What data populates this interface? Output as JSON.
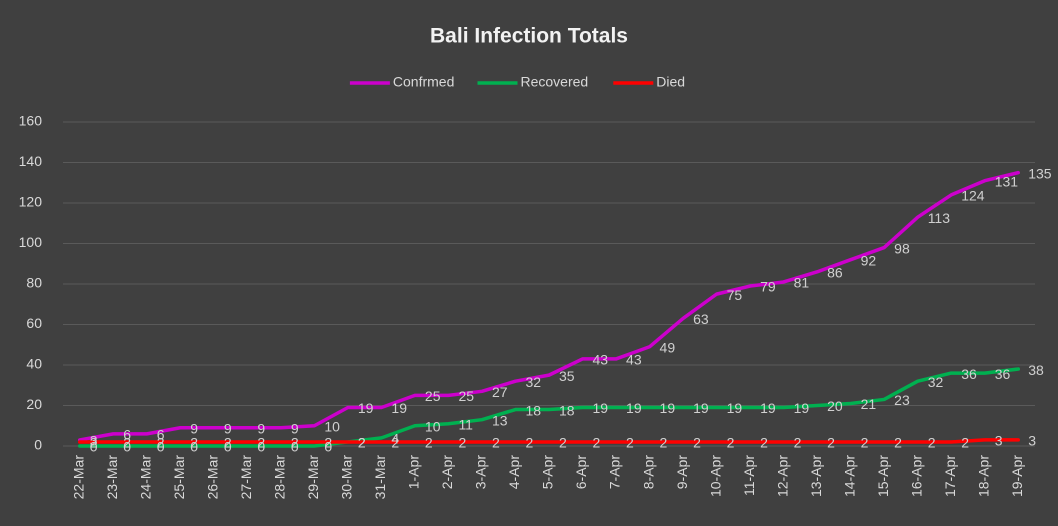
{
  "chart_data": {
    "type": "line",
    "title": "Bali Infection Totals",
    "categories": [
      "22-Mar",
      "23-Mar",
      "24-Mar",
      "25-Mar",
      "26-Mar",
      "27-Mar",
      "28-Mar",
      "29-Mar",
      "30-Mar",
      "31-Mar",
      "1-Apr",
      "2-Apr",
      "3-Apr",
      "4-Apr",
      "5-Apr",
      "6-Apr",
      "7-Apr",
      "8-Apr",
      "9-Apr",
      "10-Apr",
      "11-Apr",
      "12-Apr",
      "13-Apr",
      "14-Apr",
      "15-Apr",
      "16-Apr",
      "17-Apr",
      "18-Apr",
      "19-Apr"
    ],
    "series": [
      {
        "name": "Confrmed",
        "color": "#cc00cc",
        "values": [
          3,
          6,
          6,
          9,
          9,
          9,
          9,
          10,
          19,
          19,
          25,
          25,
          27,
          32,
          35,
          43,
          43,
          49,
          63,
          75,
          79,
          81,
          86,
          92,
          98,
          113,
          124,
          131,
          135
        ]
      },
      {
        "name": "Recovered",
        "color": "#00b050",
        "values": [
          0,
          0,
          0,
          0,
          0,
          0,
          0,
          0,
          2,
          4,
          10,
          11,
          13,
          18,
          18,
          19,
          19,
          19,
          19,
          19,
          19,
          19,
          20,
          21,
          23,
          32,
          36,
          36,
          38
        ]
      },
      {
        "name": "Died",
        "color": "#ff0000",
        "values": [
          2,
          2,
          2,
          2,
          2,
          2,
          2,
          2,
          2,
          2,
          2,
          2,
          2,
          2,
          2,
          2,
          2,
          2,
          2,
          2,
          2,
          2,
          2,
          2,
          2,
          2,
          2,
          3,
          3
        ]
      }
    ],
    "ylim": [
      0,
      160
    ],
    "yticks": [
      0,
      20,
      40,
      60,
      80,
      100,
      120,
      140,
      160
    ],
    "grid": true,
    "legend": "top"
  }
}
